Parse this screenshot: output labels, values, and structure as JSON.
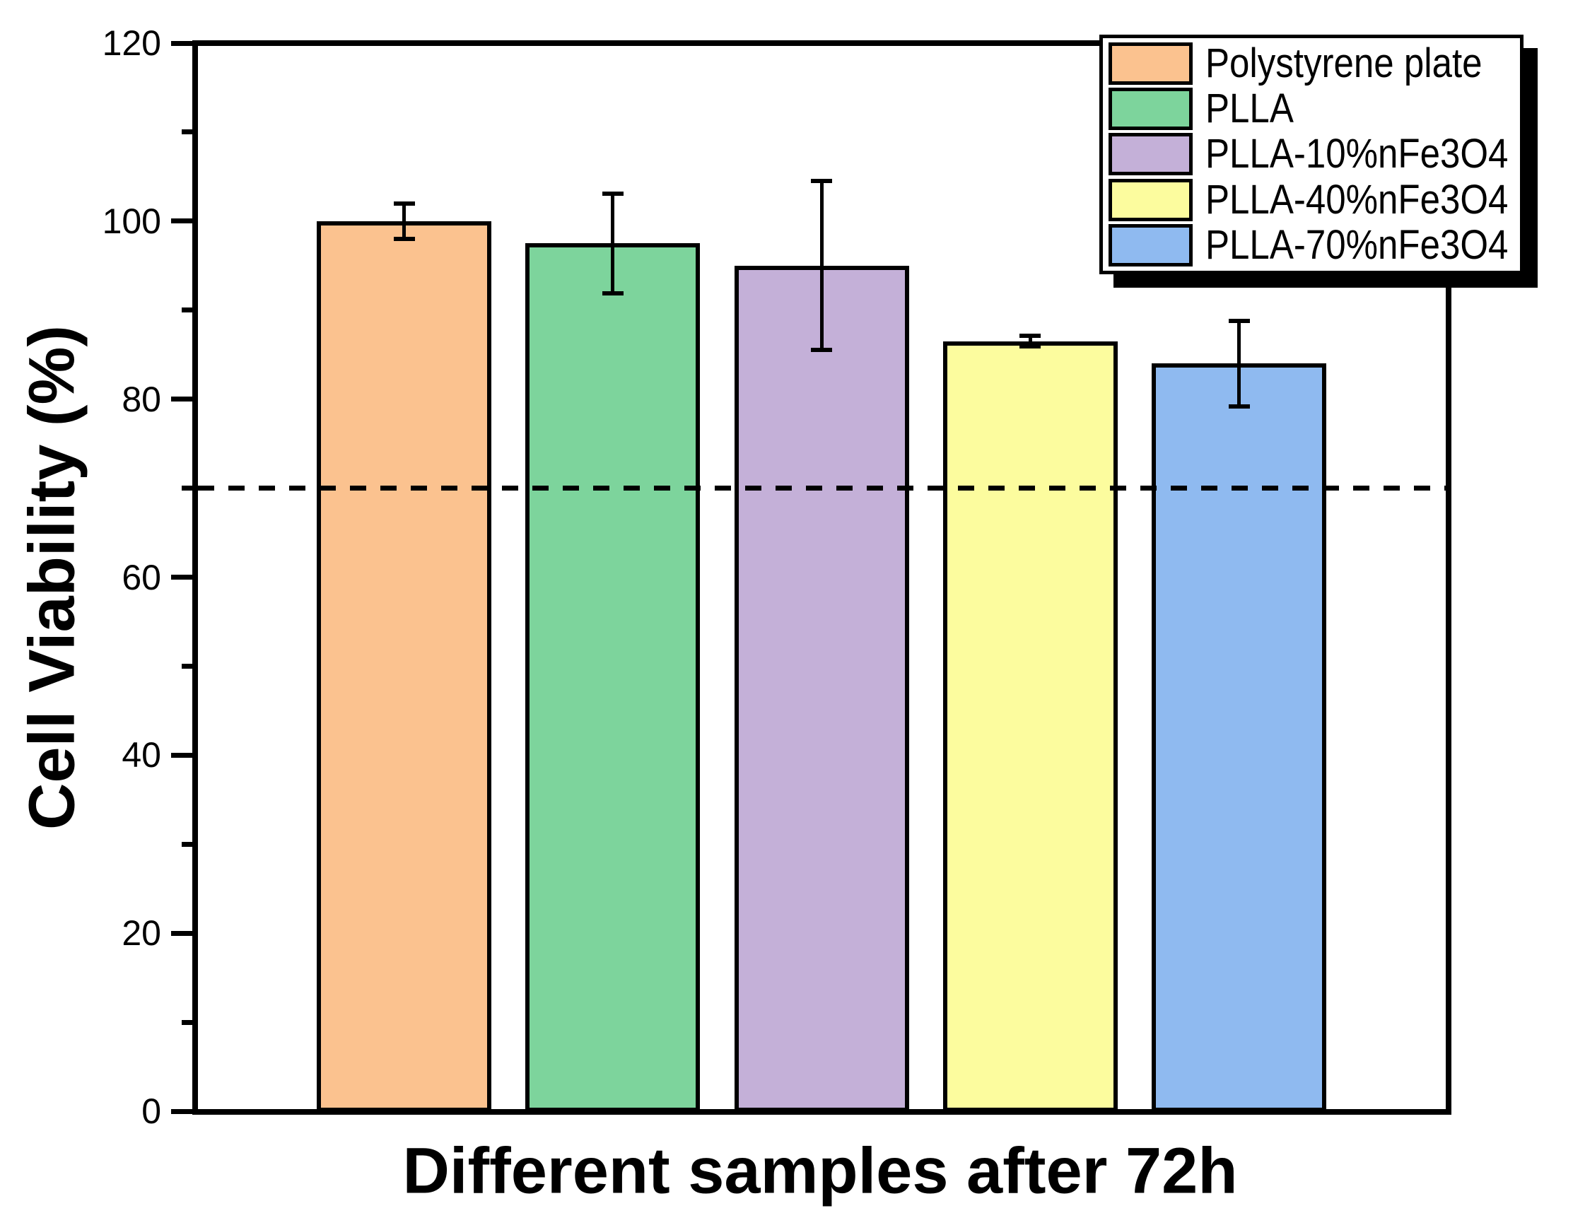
{
  "chart_data": {
    "type": "bar",
    "title": "",
    "xlabel": "Different samples after 72h",
    "ylabel": "Cell Viability (%)",
    "categories": [
      "Polystyrene plate",
      "PLLA",
      "PLLA-10%nFe3O4",
      "PLLA-40%nFe3O4",
      "PLLA-70%nFe3O4"
    ],
    "values": [
      100,
      97.5,
      95,
      86.5,
      84
    ],
    "errors": [
      2,
      5.6,
      9.5,
      0.6,
      4.8
    ],
    "bar_colors": [
      "#FBC28F",
      "#7DD49C",
      "#C4B0D8",
      "#FCFC9E",
      "#8FBAF0"
    ],
    "bar_border_color": "#000000",
    "error_bar_color": "#000000",
    "axis_color": "#000000",
    "ylim": [
      0,
      120
    ],
    "ytick_major_interval": 20,
    "ytick_minor_interval": 10,
    "ytick_labels": [
      "0",
      "20",
      "40",
      "60",
      "80",
      "100",
      "120"
    ],
    "xtick_labels": [],
    "grid": false,
    "reference_line": {
      "value": 70,
      "style": "long-dash",
      "color": "#000000"
    },
    "legend": {
      "position": "top-right",
      "shadow": true,
      "entries": [
        {
          "label": "Polystyrene plate",
          "color": "#FBC28F"
        },
        {
          "label": "PLLA",
          "color": "#7DD49C"
        },
        {
          "label": "PLLA-10%nFe3O4",
          "color": "#C4B0D8"
        },
        {
          "label": "PLLA-40%nFe3O4",
          "color": "#FCFC9E"
        },
        {
          "label": "PLLA-70%nFe3O4",
          "color": "#8FBAF0"
        }
      ]
    }
  }
}
